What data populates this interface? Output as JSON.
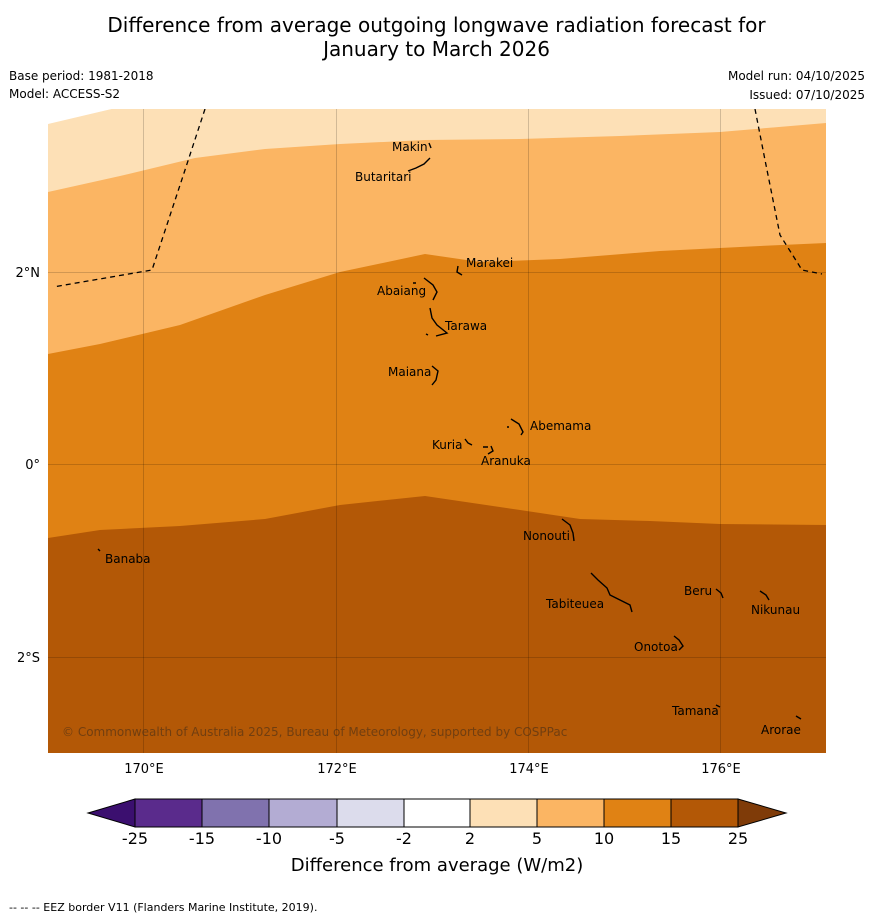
{
  "header": {
    "title_line1": "Difference from average outgoing longwave radiation forecast for",
    "title_line2": "January to March 2026",
    "base_period": "Base period: 1981-2018",
    "model": "Model: ACCESS-S2",
    "model_run": "Model run: 04/10/2025",
    "issued": "Issued: 07/10/2025"
  },
  "map": {
    "x_ticks": [
      "170°E",
      "172°E",
      "174°E",
      "176°E"
    ],
    "y_ticks": [
      "2°N",
      "0°",
      "2°S"
    ],
    "islands": [
      "Makin",
      "Butaritari",
      "Marakei",
      "Abaiang",
      "Tarawa",
      "Maiana",
      "Abemama",
      "Kuria",
      "Aranuka",
      "Nonouti",
      "Banaba",
      "Beru",
      "Tabiteuea",
      "Nikunau",
      "Onotoa",
      "Tamana",
      "Arorae"
    ],
    "copyright": "© Commonwealth of Australia 2025, Bureau of Meteorology, supported by COSPPac"
  },
  "colorbar": {
    "tick_labels": [
      "-25",
      "-15",
      "-10",
      "-5",
      "-2",
      "2",
      "5",
      "10",
      "15",
      "25"
    ],
    "colors": [
      "#3b0f6f",
      "#5a2b8c",
      "#8072ae",
      "#b3acd3",
      "#dcdcec",
      "#ffffff",
      "#fde0b6",
      "#fbb563",
      "#e08214",
      "#b35806",
      "#7f3b08"
    ],
    "label": "Difference from average (W/m2)"
  },
  "footer": {
    "eez_note": "--  --  -- EEZ border V11 (Flanders Marine Institute, 2019)."
  }
}
